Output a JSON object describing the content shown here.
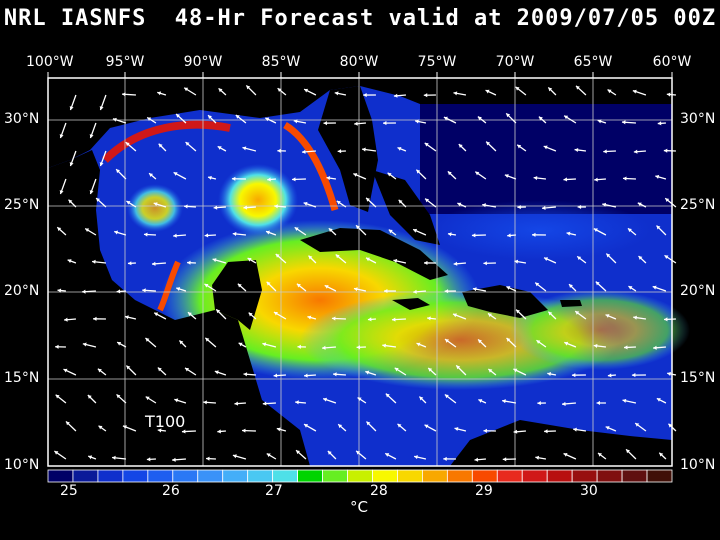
{
  "title": "NRL IASNFS  48-Hr Forecast valid at 2009/07/05 00Z",
  "map": {
    "lon_labels": [
      "100°W",
      "95°W",
      "90°W",
      "85°W",
      "80°W",
      "75°W",
      "70°W",
      "65°W",
      "60°W"
    ],
    "lat_labels": [
      "30°N",
      "25°N",
      "20°N",
      "15°N",
      "10°N"
    ],
    "annotation": "T100"
  },
  "colorbar": {
    "ticks": [
      "25",
      "26",
      "27",
      "28",
      "29",
      "30"
    ],
    "unit": "°C",
    "colors": [
      "#000066",
      "#0a1a99",
      "#0f2fcc",
      "#1446e6",
      "#1e5ef0",
      "#2a78f5",
      "#3a92f8",
      "#44aef8",
      "#4ac8f2",
      "#4ee0e8",
      "#00d400",
      "#66ee22",
      "#c8f000",
      "#f8f800",
      "#f8d800",
      "#f8a800",
      "#f87800",
      "#f84a00",
      "#e82a1e",
      "#d01818",
      "#b81010",
      "#981010",
      "#801010",
      "#601010",
      "#401008"
    ]
  }
}
